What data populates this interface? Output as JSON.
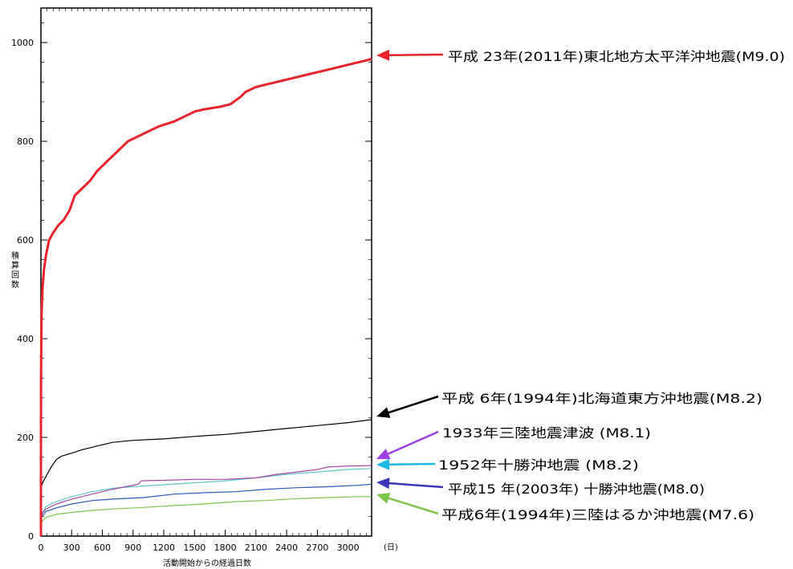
{
  "chart_data": {
    "type": "line",
    "title": "",
    "xlabel": "活動開始からの経過日数",
    "xunit": "(日)",
    "ylabel": "積算回数",
    "xlim": [
      0,
      3230
    ],
    "ylim": [
      0,
      1000
    ],
    "xticks": [
      0,
      300,
      600,
      900,
      1200,
      1500,
      1800,
      2100,
      2400,
      2700,
      3000
    ],
    "yticks": [
      0,
      200,
      400,
      600,
      800,
      1000
    ],
    "grid": false,
    "series": [
      {
        "name": "平成 23年(2011年)東北地方太平洋沖地震(M9.0)",
        "color": "#e8232a",
        "points": [
          [
            0,
            0
          ],
          [
            0,
            180
          ],
          [
            1,
            300
          ],
          [
            3,
            390
          ],
          [
            6,
            450
          ],
          [
            15,
            500
          ],
          [
            30,
            540
          ],
          [
            50,
            570
          ],
          [
            80,
            600
          ],
          [
            120,
            615
          ],
          [
            170,
            630
          ],
          [
            220,
            640
          ],
          [
            280,
            660
          ],
          [
            330,
            690
          ],
          [
            380,
            700
          ],
          [
            430,
            710
          ],
          [
            480,
            720
          ],
          [
            550,
            740
          ],
          [
            600,
            750
          ],
          [
            650,
            760
          ],
          [
            700,
            770
          ],
          [
            750,
            780
          ],
          [
            800,
            790
          ],
          [
            850,
            800
          ],
          [
            950,
            810
          ],
          [
            1050,
            820
          ],
          [
            1150,
            830
          ],
          [
            1300,
            840
          ],
          [
            1400,
            850
          ],
          [
            1500,
            860
          ],
          [
            1600,
            865
          ],
          [
            1750,
            870
          ],
          [
            1850,
            875
          ],
          [
            1950,
            890
          ],
          [
            2000,
            900
          ],
          [
            2100,
            910
          ],
          [
            2200,
            915
          ],
          [
            2400,
            925
          ],
          [
            2600,
            935
          ],
          [
            2800,
            945
          ],
          [
            3000,
            955
          ],
          [
            3200,
            965
          ],
          [
            3230,
            967
          ]
        ]
      },
      {
        "name": "平成 6年(1994年)北海道東方沖地震(M8.2)",
        "color": "#000000",
        "points": [
          [
            0,
            0
          ],
          [
            0,
            40
          ],
          [
            2,
            80
          ],
          [
            5,
            100
          ],
          [
            20,
            110
          ],
          [
            60,
            125
          ],
          [
            100,
            140
          ],
          [
            150,
            155
          ],
          [
            200,
            162
          ],
          [
            300,
            168
          ],
          [
            400,
            175
          ],
          [
            500,
            180
          ],
          [
            600,
            185
          ],
          [
            700,
            190
          ],
          [
            900,
            194
          ],
          [
            1200,
            197
          ],
          [
            1500,
            202
          ],
          [
            1800,
            206
          ],
          [
            2100,
            212
          ],
          [
            2400,
            218
          ],
          [
            2700,
            224
          ],
          [
            3000,
            230
          ],
          [
            3230,
            236
          ]
        ]
      },
      {
        "name": "1933年三陸地震津波 (M8.1)",
        "color": "#a645a6",
        "points": [
          [
            0,
            20
          ],
          [
            10,
            45
          ],
          [
            50,
            55
          ],
          [
            150,
            65
          ],
          [
            300,
            75
          ],
          [
            500,
            85
          ],
          [
            700,
            95
          ],
          [
            950,
            105
          ],
          [
            980,
            112
          ],
          [
            1200,
            113
          ],
          [
            1500,
            115
          ],
          [
            1800,
            115
          ],
          [
            2100,
            118
          ],
          [
            2300,
            125
          ],
          [
            2500,
            130
          ],
          [
            2700,
            135
          ],
          [
            2800,
            140
          ],
          [
            3000,
            142
          ],
          [
            3230,
            143
          ]
        ]
      },
      {
        "name": "1952年十勝沖地震 (M8.2)",
        "color": "#5fc7c9",
        "points": [
          [
            0,
            25
          ],
          [
            10,
            45
          ],
          [
            50,
            60
          ],
          [
            150,
            70
          ],
          [
            300,
            80
          ],
          [
            500,
            90
          ],
          [
            700,
            97
          ],
          [
            900,
            100
          ],
          [
            1200,
            104
          ],
          [
            1500,
            108
          ],
          [
            1800,
            112
          ],
          [
            2100,
            118
          ],
          [
            2400,
            125
          ],
          [
            2700,
            130
          ],
          [
            3000,
            135
          ],
          [
            3230,
            137
          ]
        ]
      },
      {
        "name": "平成15 年(2003年) 十勝沖地震(M8.0)",
        "color": "#2a5bb8",
        "points": [
          [
            0,
            25
          ],
          [
            10,
            40
          ],
          [
            50,
            50
          ],
          [
            150,
            57
          ],
          [
            300,
            65
          ],
          [
            500,
            72
          ],
          [
            700,
            75
          ],
          [
            1000,
            78
          ],
          [
            1300,
            85
          ],
          [
            1600,
            88
          ],
          [
            1900,
            90
          ],
          [
            2200,
            95
          ],
          [
            2500,
            98
          ],
          [
            2800,
            100
          ],
          [
            3100,
            103
          ],
          [
            3230,
            105
          ]
        ]
      },
      {
        "name": "平成6年(1994年)三陸はるか沖地震(M7.6)",
        "color": "#7dc44a",
        "points": [
          [
            0,
            20
          ],
          [
            10,
            30
          ],
          [
            50,
            38
          ],
          [
            150,
            44
          ],
          [
            300,
            48
          ],
          [
            500,
            52
          ],
          [
            700,
            55
          ],
          [
            1000,
            58
          ],
          [
            1300,
            62
          ],
          [
            1600,
            65
          ],
          [
            1900,
            70
          ],
          [
            2200,
            72
          ],
          [
            2500,
            76
          ],
          [
            2800,
            78
          ],
          [
            3100,
            80
          ],
          [
            3230,
            80
          ]
        ]
      }
    ],
    "annotations": [
      {
        "text": "平成 23年(2011年)東北地方太平洋沖地震(M9.0)",
        "color": "#e8232a"
      },
      {
        "text": "平成 6年(1994年)北海道東方沖地震(M8.2)",
        "color": "#000000"
      },
      {
        "text": "1933年三陸地震津波 (M8.1)",
        "color": "#9b3fe0"
      },
      {
        "text": "1952年十勝沖地震 (M8.2)",
        "color": "#1eb8e6"
      },
      {
        "text": "平成15 年(2003年) 十勝沖地震(M8.0)",
        "color": "#3a37b8"
      },
      {
        "text": "平成6年(1994年)三陸はるか沖地震(M7.6)",
        "color": "#7dc44a"
      }
    ]
  }
}
